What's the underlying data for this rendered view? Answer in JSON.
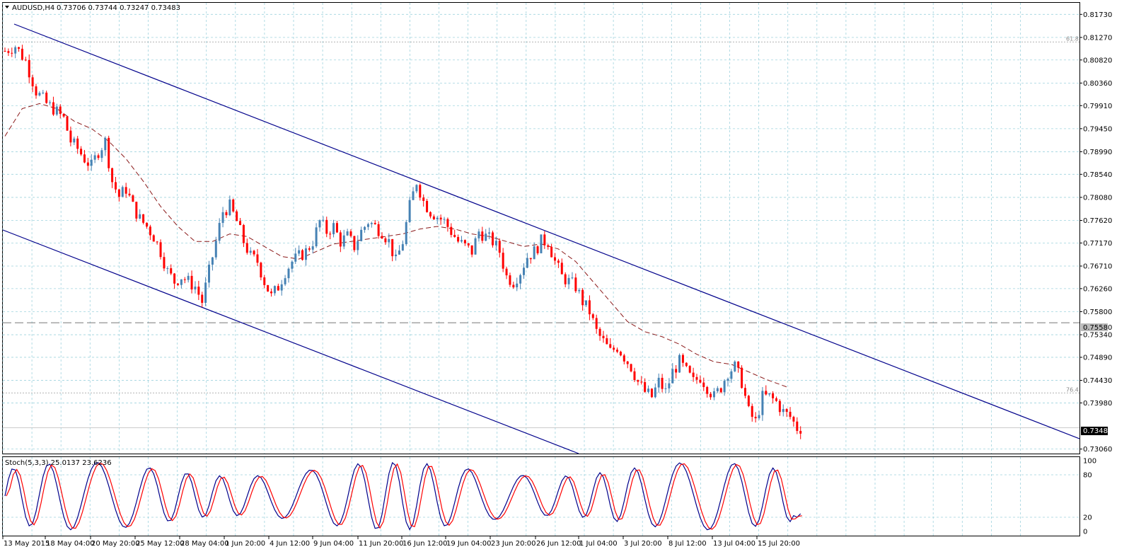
{
  "header": {
    "symbol": "AUDUSD,H4",
    "ohlc": "0.73706 0.73744 0.73247 0.73483"
  },
  "chart_data": {
    "type": "candlestick",
    "symbol": "AUDUSD",
    "timeframe": "H4",
    "y_ticks": [
      "0.81730",
      "0.81270",
      "0.80820",
      "0.80360",
      "0.79910",
      "0.79450",
      "0.78990",
      "0.78540",
      "0.78080",
      "0.77620",
      "0.77170",
      "0.76710",
      "0.76260",
      "0.75800",
      "0.75340",
      "0.74890",
      "0.74430",
      "0.73980",
      "0.73060"
    ],
    "ylim": [
      0.7297,
      0.8196
    ],
    "x_ticks": [
      "13 May 2015",
      "18 May 04:00",
      "20 May 20:00",
      "25 May 12:00",
      "28 May 04:00",
      "1 Jun 20:00",
      "4 Jun 12:00",
      "9 Jun 04:00",
      "11 Jun 20:00",
      "16 Jun 12:00",
      "19 Jun 04:00",
      "23 Jun 20:00",
      "26 Jun 12:00",
      "1 Jul 04:00",
      "3 Jul 20:00",
      "8 Jul 12:00",
      "13 Jul 04:00",
      "15 Jul 20:00"
    ],
    "current_price": "0.73483",
    "horizontal_level": "0.75580",
    "fib_levels": [
      {
        "label": "61.8",
        "value": 0.8118
      },
      {
        "label": "76.4",
        "value": 0.7418
      }
    ],
    "close_path": [
      [
        0,
        0.81
      ],
      [
        3,
        0.811
      ],
      [
        6,
        0.808
      ],
      [
        9,
        0.802
      ],
      [
        12,
        0.7995
      ],
      [
        14,
        0.7985
      ],
      [
        17,
        0.7965
      ],
      [
        19,
        0.792
      ],
      [
        21,
        0.7905
      ],
      [
        23,
        0.7885
      ],
      [
        25,
        0.787
      ],
      [
        27,
        0.79
      ],
      [
        29,
        0.792
      ],
      [
        31,
        0.784
      ],
      [
        33,
        0.781
      ],
      [
        35,
        0.7825
      ],
      [
        37,
        0.779
      ],
      [
        39,
        0.7765
      ],
      [
        41,
        0.775
      ],
      [
        43,
        0.773
      ],
      [
        45,
        0.77
      ],
      [
        47,
        0.766
      ],
      [
        49,
        0.764
      ],
      [
        51,
        0.765
      ],
      [
        53,
        0.764
      ],
      [
        55,
        0.763
      ],
      [
        57,
        0.76
      ],
      [
        59,
        0.766
      ],
      [
        61,
        0.772
      ],
      [
        63,
        0.778
      ],
      [
        65,
        0.779
      ],
      [
        67,
        0.776
      ],
      [
        69,
        0.772
      ],
      [
        71,
        0.769
      ],
      [
        73,
        0.768
      ],
      [
        75,
        0.764
      ],
      [
        77,
        0.761
      ],
      [
        79,
        0.763
      ],
      [
        81,
        0.766
      ],
      [
        83,
        0.768
      ],
      [
        85,
        0.769
      ],
      [
        87,
        0.77
      ],
      [
        89,
        0.772
      ],
      [
        91,
        0.776
      ],
      [
        93,
        0.774
      ],
      [
        95,
        0.775
      ],
      [
        97,
        0.772
      ],
      [
        99,
        0.773
      ],
      [
        101,
        0.771
      ],
      [
        103,
        0.774
      ],
      [
        105,
        0.776
      ],
      [
        107,
        0.775
      ],
      [
        109,
        0.774
      ],
      [
        111,
        0.772
      ],
      [
        113,
        0.768
      ],
      [
        115,
        0.772
      ],
      [
        117,
        0.779
      ],
      [
        119,
        0.784
      ],
      [
        121,
        0.78
      ],
      [
        123,
        0.778
      ],
      [
        125,
        0.777
      ],
      [
        127,
        0.776
      ],
      [
        129,
        0.774
      ],
      [
        131,
        0.772
      ],
      [
        133,
        0.771
      ],
      [
        135,
        0.77
      ],
      [
        137,
        0.774
      ],
      [
        139,
        0.773
      ],
      [
        141,
        0.772
      ],
      [
        143,
        0.77
      ],
      [
        145,
        0.765
      ],
      [
        147,
        0.764
      ],
      [
        149,
        0.766
      ],
      [
        151,
        0.769
      ],
      [
        153,
        0.77
      ],
      [
        155,
        0.772
      ],
      [
        157,
        0.772
      ],
      [
        159,
        0.768
      ],
      [
        161,
        0.765
      ],
      [
        163,
        0.764
      ],
      [
        165,
        0.763
      ],
      [
        167,
        0.76
      ],
      [
        169,
        0.758
      ],
      [
        171,
        0.754
      ],
      [
        173,
        0.752
      ],
      [
        175,
        0.75
      ],
      [
        177,
        0.751
      ],
      [
        179,
        0.749
      ],
      [
        181,
        0.747
      ],
      [
        183,
        0.744
      ],
      [
        185,
        0.742
      ],
      [
        187,
        0.741
      ],
      [
        189,
        0.744
      ],
      [
        191,
        0.742
      ],
      [
        193,
        0.746
      ],
      [
        195,
        0.748
      ],
      [
        197,
        0.746
      ],
      [
        199,
        0.744
      ],
      [
        201,
        0.745
      ],
      [
        203,
        0.743
      ],
      [
        205,
        0.741
      ],
      [
        207,
        0.743
      ],
      [
        209,
        0.746
      ],
      [
        211,
        0.747
      ],
      [
        213,
        0.744
      ],
      [
        215,
        0.738
      ],
      [
        217,
        0.736
      ],
      [
        219,
        0.741
      ],
      [
        221,
        0.741
      ],
      [
        223,
        0.74
      ],
      [
        225,
        0.738
      ],
      [
        227,
        0.737
      ],
      [
        229,
        0.7348
      ]
    ],
    "ma_path": [
      [
        0,
        0.793
      ],
      [
        5,
        0.7985
      ],
      [
        10,
        0.7995
      ],
      [
        15,
        0.7985
      ],
      [
        20,
        0.796
      ],
      [
        25,
        0.7945
      ],
      [
        30,
        0.792
      ],
      [
        35,
        0.7885
      ],
      [
        40,
        0.784
      ],
      [
        45,
        0.779
      ],
      [
        50,
        0.775
      ],
      [
        55,
        0.772
      ],
      [
        60,
        0.772
      ],
      [
        65,
        0.7735
      ],
      [
        70,
        0.773
      ],
      [
        75,
        0.771
      ],
      [
        80,
        0.769
      ],
      [
        85,
        0.7685
      ],
      [
        90,
        0.77
      ],
      [
        95,
        0.7715
      ],
      [
        100,
        0.772
      ],
      [
        105,
        0.7725
      ],
      [
        110,
        0.773
      ],
      [
        115,
        0.7735
      ],
      [
        120,
        0.7745
      ],
      [
        125,
        0.775
      ],
      [
        130,
        0.7745
      ],
      [
        135,
        0.7735
      ],
      [
        140,
        0.773
      ],
      [
        145,
        0.772
      ],
      [
        150,
        0.771
      ],
      [
        155,
        0.7715
      ],
      [
        160,
        0.7705
      ],
      [
        165,
        0.768
      ],
      [
        170,
        0.764
      ],
      [
        175,
        0.76
      ],
      [
        180,
        0.756
      ],
      [
        185,
        0.754
      ],
      [
        190,
        0.753
      ],
      [
        195,
        0.7515
      ],
      [
        200,
        0.7495
      ],
      [
        205,
        0.748
      ],
      [
        210,
        0.7475
      ],
      [
        215,
        0.746
      ],
      [
        220,
        0.7445
      ],
      [
        226,
        0.743
      ]
    ],
    "indicator": {
      "name": "Stoch(5,3,3)",
      "main_value": "25.0137",
      "signal_value": "23.6236",
      "levels": [
        "100",
        "80",
        "20",
        "0"
      ]
    }
  }
}
